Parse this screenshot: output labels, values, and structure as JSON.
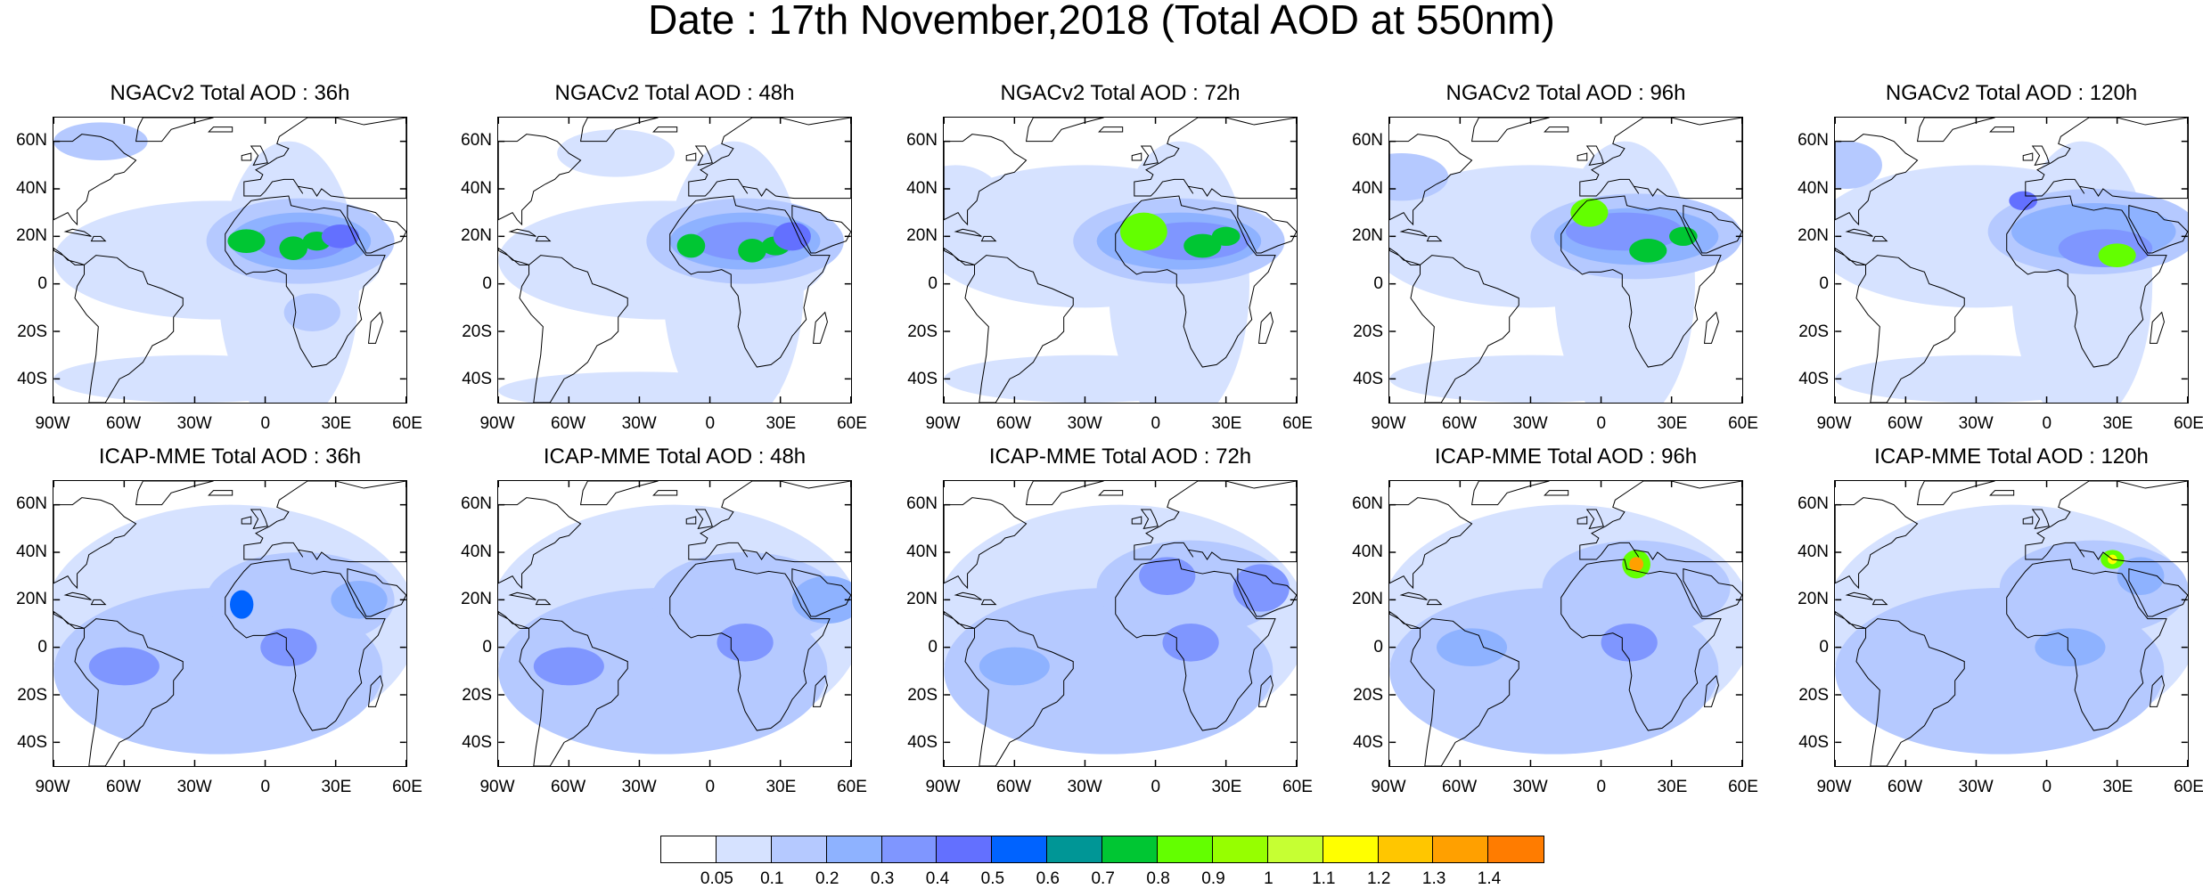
{
  "title": "Date : 17th November,2018 (Total AOD at 550nm)",
  "lat_labels": [
    "60N",
    "40N",
    "20N",
    "0",
    "20S",
    "40S"
  ],
  "lat_values": [
    60,
    40,
    20,
    0,
    -20,
    -40
  ],
  "lon_labels": [
    "90W",
    "60W",
    "30W",
    "0",
    "30E",
    "60E"
  ],
  "lon_values": [
    -90,
    -60,
    -30,
    0,
    30,
    60
  ],
  "map_extent": {
    "lon": [
      -90,
      60
    ],
    "lat": [
      -50,
      70
    ]
  },
  "panels": [
    {
      "title": "NGACv2 Total AOD : 36h",
      "model": "NGACv2",
      "lead": "36h"
    },
    {
      "title": "NGACv2 Total AOD : 48h",
      "model": "NGACv2",
      "lead": "48h"
    },
    {
      "title": "NGACv2 Total AOD : 72h",
      "model": "NGACv2",
      "lead": "72h"
    },
    {
      "title": "NGACv2 Total AOD : 96h",
      "model": "NGACv2",
      "lead": "96h"
    },
    {
      "title": "NGACv2 Total AOD : 120h",
      "model": "NGACv2",
      "lead": "120h"
    },
    {
      "title": "ICAP-MME Total AOD : 36h",
      "model": "ICAP-MME",
      "lead": "36h"
    },
    {
      "title": "ICAP-MME Total AOD : 48h",
      "model": "ICAP-MME",
      "lead": "48h"
    },
    {
      "title": "ICAP-MME Total AOD : 72h",
      "model": "ICAP-MME",
      "lead": "72h"
    },
    {
      "title": "ICAP-MME Total AOD : 96h",
      "model": "ICAP-MME",
      "lead": "96h"
    },
    {
      "title": "ICAP-MME Total AOD : 120h",
      "model": "ICAP-MME",
      "lead": "120h"
    }
  ],
  "colorbar": {
    "colors": [
      "#ffffff",
      "#d6e2ff",
      "#b5c9ff",
      "#8eb2ff",
      "#7f96ff",
      "#6370ff",
      "#0063ff",
      "#009696",
      "#00c633",
      "#63ff00",
      "#96ff00",
      "#c6ff33",
      "#ffff00",
      "#ffc600",
      "#ffa000",
      "#ff7c00",
      "#ff1900"
    ],
    "labels": [
      "0.05",
      "0.1",
      "0.2",
      "0.3",
      "0.4",
      "0.5",
      "0.6",
      "0.7",
      "0.8",
      "0.9",
      "1",
      "1.1",
      "1.2",
      "1.3",
      "1.4"
    ]
  }
}
